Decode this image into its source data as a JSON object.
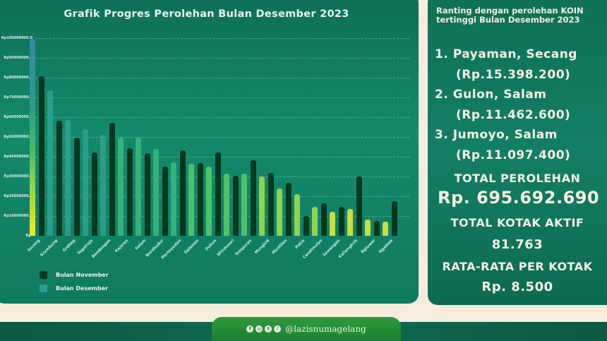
{
  "chart_title": "Grafik Progres Perolehan Bulan Desember 2023",
  "legend": [
    {
      "label": "Bulan November",
      "color": "#05381d"
    },
    {
      "label": "Bulan Desember",
      "color": "#2a9c93"
    }
  ],
  "y_ticks": [
    "Rp-",
    "Rp10000000.0",
    "Rp20000000.0",
    "Rp30000000.0",
    "Rp40000000.0",
    "Rp50000000.0",
    "Rp60000000.0",
    "Rp70000000.0",
    "Rp80000000.0",
    "Rp90000000.0",
    "Rp100000000.0"
  ],
  "chart_data": {
    "type": "bar",
    "title": "Grafik Progres Perolehan Bulan Desember 2023",
    "xlabel": "",
    "ylabel": "",
    "ylim": [
      0,
      100000000
    ],
    "grid": true,
    "legend_position": "bottom-left",
    "categories": [
      "Secang",
      "Srumbung",
      "Grabag",
      "Tegalrejo",
      "Bandongan",
      "Kajoran",
      "Salam",
      "Borobudur",
      "Mertoyudan",
      "Salaman",
      "Dukun",
      "Windusari",
      "Tempuran",
      "Mungkid",
      "Muntilan",
      "Pakis",
      "Candimulyo",
      "Sawangan",
      "Kaliangkrik",
      "Ngluwar",
      "Ngablak"
    ],
    "series": [
      {
        "name": "Bulan November",
        "values": [
          80700000,
          58200000,
          49600000,
          42100000,
          57100000,
          44300000,
          41800000,
          35000000,
          43200000,
          36800000,
          42100000,
          30400000,
          38200000,
          31800000,
          26800000,
          10000000,
          16400000,
          14600000,
          30000000,
          7500000,
          17500000
        ]
      },
      {
        "name": "Bulan Desember",
        "values": [
          99600000,
          73600000,
          58600000,
          53900000,
          51100000,
          49600000,
          49600000,
          43900000,
          37100000,
          36400000,
          35000000,
          31400000,
          31400000,
          30000000,
          23900000,
          21100000,
          14600000,
          12100000,
          13600000,
          8200000,
          7100000
        ]
      }
    ]
  },
  "info": {
    "heading_line1": "Ranting dengan perolehan KOIN",
    "heading_line2": "tertinggi Bulan Desember 2023",
    "ranks": [
      {
        "place": "1. Payaman, Secang",
        "amount": "(Rp.15.398.200)"
      },
      {
        "place": "2. Gulon, Salam",
        "amount": "(Rp.11.462.600)"
      },
      {
        "place": "3. Jumoyo, Salam",
        "amount": "(Rp.11.097.400)"
      }
    ],
    "total_label": "TOTAL PEROLEHAN",
    "total_value": "Rp. 695.692.690",
    "kotak_label": "TOTAL KOTAK AKTIF",
    "kotak_value": "81.763",
    "avg_label": "RATA-RATA PER KOTAK",
    "avg_value": "Rp. 8.500"
  },
  "footer": {
    "social_icons": [
      "facebook-icon",
      "instagram-icon",
      "twitter-icon",
      "tiktok-icon"
    ],
    "social_glyphs": [
      "f",
      "◎",
      "t",
      "♪"
    ],
    "handle": "@lazisnumagelang"
  }
}
